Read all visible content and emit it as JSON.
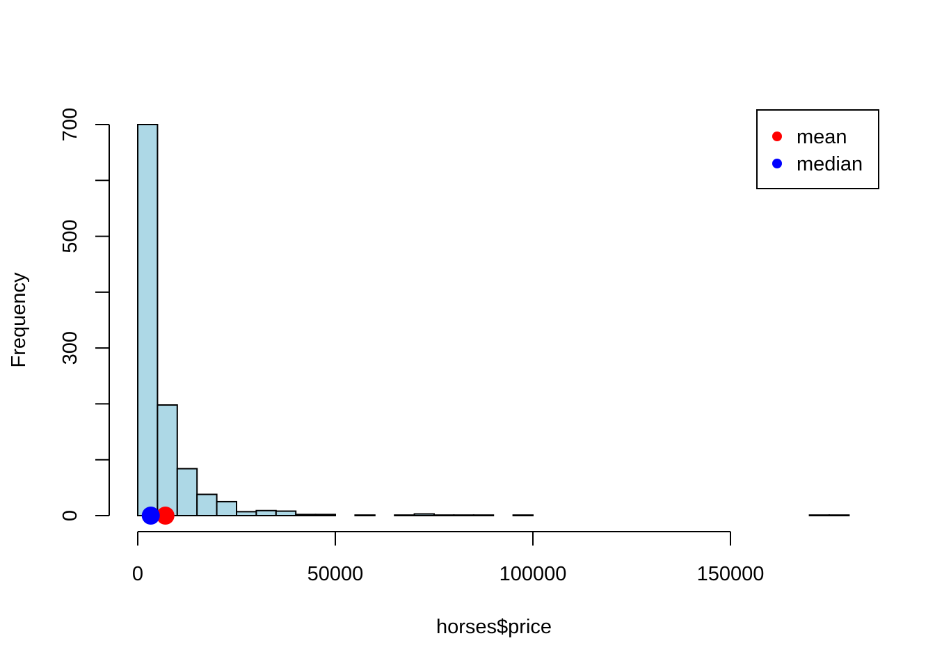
{
  "chart_data": {
    "type": "bar",
    "title": "",
    "xlabel": "horses$price",
    "ylabel": "Frequency",
    "bin_width": 5000,
    "bin_edges_start": 0,
    "values": [
      700,
      198,
      84,
      38,
      25,
      7,
      9,
      8,
      2,
      2,
      0,
      1,
      0,
      1,
      3,
      1,
      1,
      1,
      0,
      1,
      0,
      0,
      0,
      0,
      0,
      0,
      0,
      0,
      0,
      0,
      0,
      0,
      0,
      0,
      1,
      1
    ],
    "xlim": [
      0,
      180000
    ],
    "ylim": [
      0,
      700
    ],
    "x_ticks": [
      0,
      50000,
      100000,
      150000
    ],
    "x_tick_labels": [
      "0",
      "50000",
      "100000",
      "150000"
    ],
    "y_ticks": [
      0,
      100,
      200,
      300,
      400,
      500,
      600,
      700
    ],
    "y_tick_labels": [
      "0",
      "",
      "",
      "300",
      "",
      "500",
      "",
      "700"
    ],
    "bar_color": "#add8e6",
    "markers": [
      {
        "name": "mean",
        "x": 7000,
        "y": 0,
        "color": "#ff0000"
      },
      {
        "name": "median",
        "x": 3300,
        "y": 0,
        "color": "#0000ff"
      }
    ],
    "legend": {
      "position": "top-right",
      "entries": [
        {
          "label": "mean",
          "color": "#ff0000"
        },
        {
          "label": "median",
          "color": "#0000ff"
        }
      ]
    }
  }
}
